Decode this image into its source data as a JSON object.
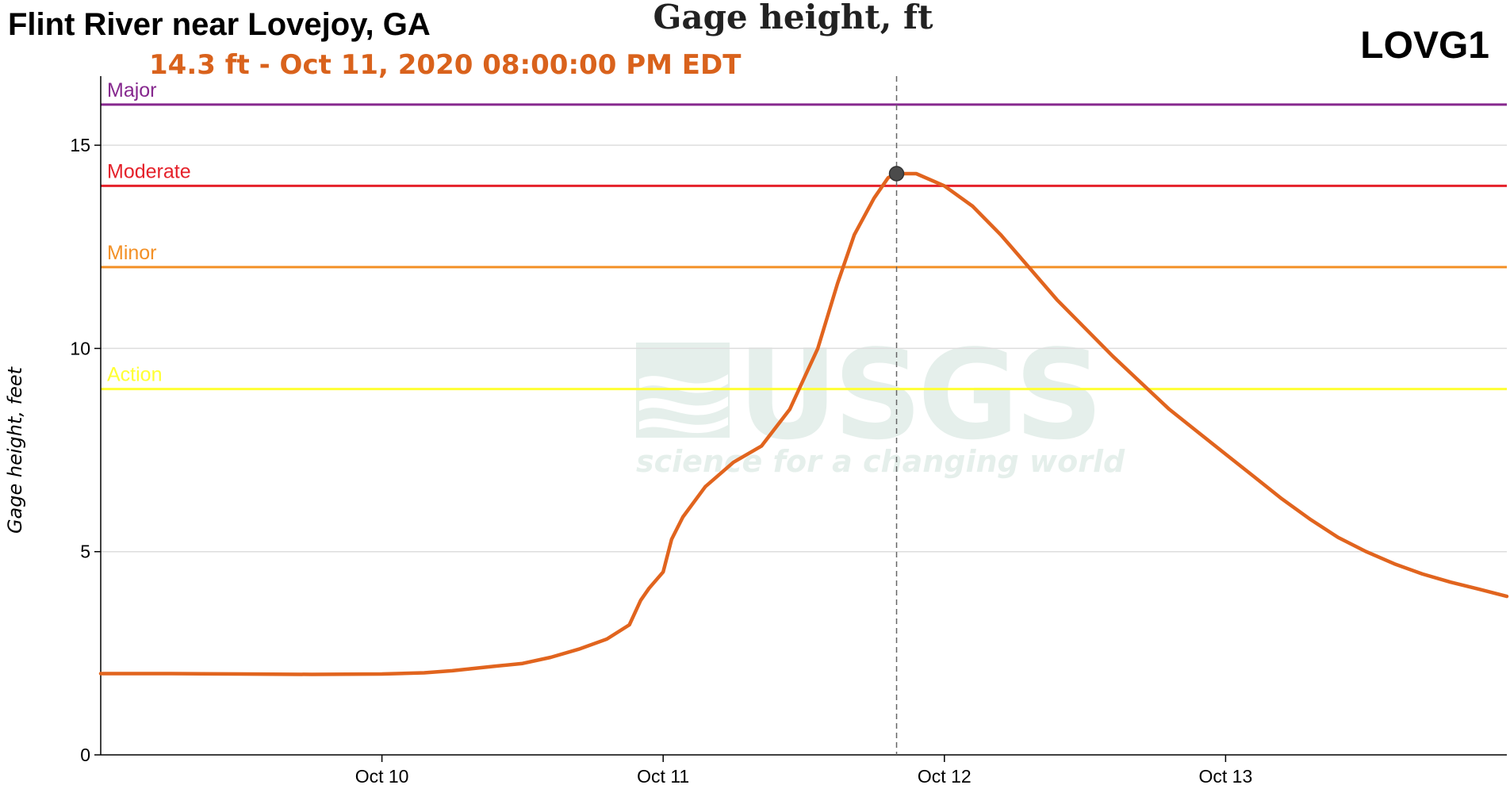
{
  "header": {
    "site_name": "Flint River near Lovejoy, GA",
    "site_id": "LOVG1",
    "chart_title": "Gage height, ft",
    "readout": "14.3 ft - Oct 11, 2020 08:00:00 PM EDT"
  },
  "watermark": {
    "logo_text": "USGS",
    "tagline": "science for a changing world"
  },
  "colors": {
    "series": "#e1641e",
    "readout": "#d9621c",
    "major": "#86288e",
    "moderate": "#e5212a",
    "minor": "#f39026",
    "action": "#ffff33",
    "grid": "#dddddd",
    "axis": "#000000",
    "crosshair": "#666666",
    "marker": "#4b4b4b"
  },
  "chart_data": {
    "type": "line",
    "title": "Gage height, ft",
    "ylabel": "Gage height, feet",
    "xlabel": "",
    "x_units": "days since Oct 9, 2020 00:00",
    "xlim": [
      0,
      5
    ],
    "ylim": [
      0,
      16.7
    ],
    "x_ticks": [
      {
        "x": 1,
        "label": "Oct 10"
      },
      {
        "x": 2,
        "label": "Oct 11"
      },
      {
        "x": 3,
        "label": "Oct 12"
      },
      {
        "x": 4,
        "label": "Oct 13"
      }
    ],
    "y_ticks": [
      {
        "y": 0,
        "label": "0"
      },
      {
        "y": 5,
        "label": "5"
      },
      {
        "y": 10,
        "label": "10"
      },
      {
        "y": 15,
        "label": "15"
      }
    ],
    "grid": "horizontal",
    "thresholds": [
      {
        "name": "Major",
        "value": 16.0,
        "color": "#86288e"
      },
      {
        "name": "Moderate",
        "value": 14.0,
        "color": "#e5212a"
      },
      {
        "name": "Minor",
        "value": 12.0,
        "color": "#f39026"
      },
      {
        "name": "Action",
        "value": 9.0,
        "color": "#ffff33"
      }
    ],
    "highlight": {
      "x": 2.83,
      "y": 14.3,
      "label": "14.3 ft - Oct 11, 2020 08:00:00 PM EDT"
    },
    "series": [
      {
        "name": "Gage height",
        "color": "#e1641e",
        "points": [
          [
            0.0,
            2.0
          ],
          [
            0.25,
            2.0
          ],
          [
            0.5,
            1.99
          ],
          [
            0.75,
            1.98
          ],
          [
            1.0,
            1.99
          ],
          [
            1.15,
            2.02
          ],
          [
            1.25,
            2.07
          ],
          [
            1.4,
            2.18
          ],
          [
            1.5,
            2.25
          ],
          [
            1.6,
            2.4
          ],
          [
            1.7,
            2.6
          ],
          [
            1.8,
            2.85
          ],
          [
            1.88,
            3.2
          ],
          [
            1.92,
            3.8
          ],
          [
            1.95,
            4.1
          ],
          [
            2.0,
            4.5
          ],
          [
            2.03,
            5.3
          ],
          [
            2.07,
            5.85
          ],
          [
            2.15,
            6.6
          ],
          [
            2.25,
            7.2
          ],
          [
            2.35,
            7.6
          ],
          [
            2.45,
            8.5
          ],
          [
            2.55,
            10.0
          ],
          [
            2.62,
            11.6
          ],
          [
            2.68,
            12.8
          ],
          [
            2.75,
            13.7
          ],
          [
            2.8,
            14.2
          ],
          [
            2.83,
            14.3
          ],
          [
            2.9,
            14.3
          ],
          [
            3.0,
            14.0
          ],
          [
            3.1,
            13.5
          ],
          [
            3.2,
            12.8
          ],
          [
            3.3,
            12.0
          ],
          [
            3.4,
            11.2
          ],
          [
            3.5,
            10.5
          ],
          [
            3.6,
            9.8
          ],
          [
            3.7,
            9.15
          ],
          [
            3.8,
            8.5
          ],
          [
            3.9,
            7.95
          ],
          [
            4.0,
            7.4
          ],
          [
            4.1,
            6.85
          ],
          [
            4.2,
            6.3
          ],
          [
            4.3,
            5.8
          ],
          [
            4.4,
            5.35
          ],
          [
            4.5,
            5.0
          ],
          [
            4.6,
            4.7
          ],
          [
            4.7,
            4.45
          ],
          [
            4.8,
            4.25
          ],
          [
            4.9,
            4.08
          ],
          [
            5.0,
            3.9
          ]
        ]
      }
    ]
  }
}
